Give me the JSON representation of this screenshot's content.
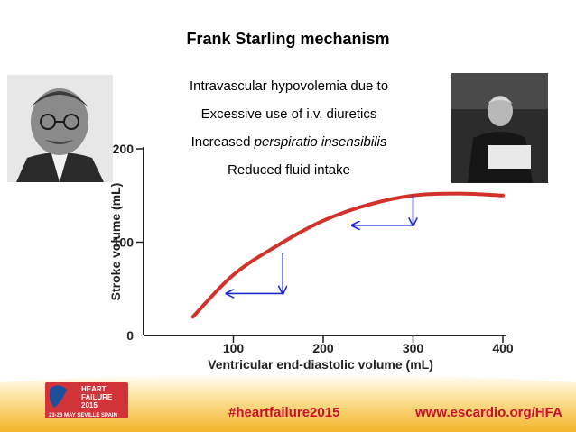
{
  "slide": {
    "title": "Frank Starling mechanism",
    "lines": [
      "Intravascular hypovolemia due to",
      "Excessive use of i.v. diuretics",
      "Reduced fluid intake"
    ],
    "line3_prefix": "Increased ",
    "line3_italic": "perspiratio insensibilis"
  },
  "footer": {
    "hashtag": "#heartfailure2015",
    "url": "www.escardio.org/HFA",
    "logo_lines": [
      "HEART",
      "FAILURE",
      "2015",
      "23-26 MAY  SEVILLE  SPAIN"
    ]
  },
  "chart_data": {
    "type": "line",
    "xlabel": "Ventricular end-diastolic volume (mL)",
    "ylabel": "Stroke volume (mL)",
    "xlim": [
      0,
      400
    ],
    "ylim": [
      0,
      200
    ],
    "xticks": [
      "100",
      "200",
      "300",
      "400"
    ],
    "yticks": [
      "0",
      "100",
      "200"
    ],
    "series": [
      {
        "color": "#d1332b",
        "x": [
          55,
          100,
          150,
          200,
          250,
          300,
          350,
          400
        ],
        "y": [
          20,
          65,
          97,
          123,
          140,
          150,
          152,
          150
        ]
      }
    ],
    "annotations": [
      {
        "kind": "arrow",
        "from": [
          300,
          150
        ],
        "to": [
          300,
          118
        ]
      },
      {
        "kind": "arrow",
        "from": [
          300,
          118
        ],
        "to": [
          232,
          118
        ]
      },
      {
        "kind": "arrow",
        "from": [
          155,
          88
        ],
        "to": [
          155,
          45
        ]
      },
      {
        "kind": "arrow",
        "from": [
          155,
          45
        ],
        "to": [
          92,
          45
        ]
      }
    ]
  }
}
